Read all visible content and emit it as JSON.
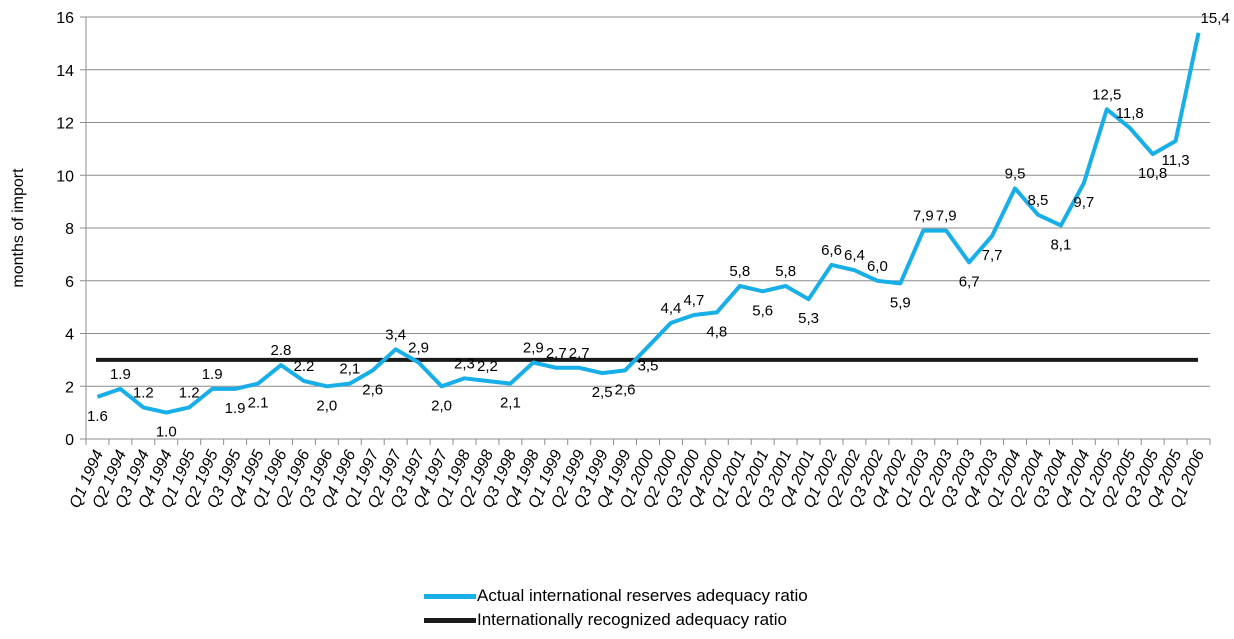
{
  "chart_data": {
    "type": "line",
    "title": "",
    "xlabel": "",
    "ylabel": "months of import",
    "ylim": [
      0,
      16
    ],
    "yticks": [
      "0",
      "2",
      "4",
      "6",
      "8",
      "10",
      "12",
      "14",
      "16"
    ],
    "grid": "horizontal",
    "legend_position": "bottom",
    "categories": [
      "Q1 1994",
      "Q2 1994",
      "Q3 1994",
      "Q4 1994",
      "Q1 1995",
      "Q2 1995",
      "Q3 1995",
      "Q4 1995",
      "Q1 1996",
      "Q2 1996",
      "Q3 1996",
      "Q4 1996",
      "Q1 1997",
      "Q2 1997",
      "Q3 1997",
      "Q4 1997",
      "Q1 1998",
      "Q2 1998",
      "Q3 1998",
      "Q4 1998",
      "Q1 1999",
      "Q2 1999",
      "Q3 1999",
      "Q4 1999",
      "Q1 2000",
      "Q2 2000",
      "Q3 2000",
      "Q4 2000",
      "Q1 2001",
      "Q2 2001",
      "Q3 2001",
      "Q4 2001",
      "Q1 2002",
      "Q2 2002",
      "Q3 2002",
      "Q4 2002",
      "Q1 2003",
      "Q2 2003",
      "Q3 2003",
      "Q4 2003",
      "Q1 2004",
      "Q2 2004",
      "Q3 2004",
      "Q4 2004",
      "Q1 2005",
      "Q2 2005",
      "Q3 2005",
      "Q4 2005",
      "Q1 2006"
    ],
    "series": [
      {
        "name": "Actual international reserves adequacy ratio",
        "color": "#18aee8",
        "values": [
          1.6,
          1.9,
          1.2,
          1.0,
          1.2,
          1.9,
          1.9,
          2.1,
          2.8,
          2.2,
          2.0,
          2.1,
          2.6,
          3.4,
          2.9,
          2.0,
          2.3,
          2.2,
          2.1,
          2.9,
          2.7,
          2.7,
          2.5,
          2.6,
          3.5,
          4.4,
          4.7,
          4.8,
          5.8,
          5.6,
          5.8,
          5.3,
          6.6,
          6.4,
          6.0,
          5.9,
          7.9,
          7.9,
          6.7,
          7.7,
          9.5,
          8.5,
          8.1,
          9.7,
          12.5,
          11.8,
          10.8,
          11.3,
          15.4
        ],
        "labels": [
          "1.6",
          "1.9",
          "1.2",
          "1.0",
          "1.2",
          "1.9",
          "1.9",
          "2.1",
          "2.8",
          "2.2",
          "2,0",
          "2,1",
          "2,6",
          "3,4",
          "2,9",
          "2,0",
          "2,3",
          "2,2",
          "2,1",
          "2,9",
          "2,7",
          "2,7",
          "2,5",
          "2,6",
          "3,5",
          "4,4",
          "4,7",
          "4,8",
          "5,8",
          "5,6",
          "5,8",
          "5,3",
          "6,6",
          "6,4",
          "6,0",
          "5,9",
          "7,9",
          "7,9",
          "6,7",
          "7,7",
          "9,5",
          "8,5",
          "8,1",
          "9,7",
          "12,5",
          "11,8",
          "10,8",
          "11,3",
          "15,4"
        ],
        "label_position": [
          "below",
          "above",
          "above",
          "below",
          "above",
          "above",
          "below",
          "below",
          "above",
          "above",
          "below",
          "above",
          "below",
          "above",
          "above",
          "below",
          "above",
          "above",
          "below",
          "above",
          "above",
          "above",
          "below",
          "below",
          "below",
          "above",
          "above",
          "below",
          "above",
          "below",
          "above",
          "below",
          "above",
          "above",
          "above",
          "below",
          "above",
          "above",
          "below",
          "below",
          "above",
          "above",
          "below",
          "below",
          "above",
          "above",
          "below",
          "below",
          "above"
        ]
      },
      {
        "name": "Internationally recognized adequacy ratio",
        "color": "#1a1a1a",
        "values": [
          3,
          3,
          3,
          3,
          3,
          3,
          3,
          3,
          3,
          3,
          3,
          3,
          3,
          3,
          3,
          3,
          3,
          3,
          3,
          3,
          3,
          3,
          3,
          3,
          3,
          3,
          3,
          3,
          3,
          3,
          3,
          3,
          3,
          3,
          3,
          3,
          3,
          3,
          3,
          3,
          3,
          3,
          3,
          3,
          3,
          3,
          3,
          3,
          3
        ]
      }
    ]
  }
}
